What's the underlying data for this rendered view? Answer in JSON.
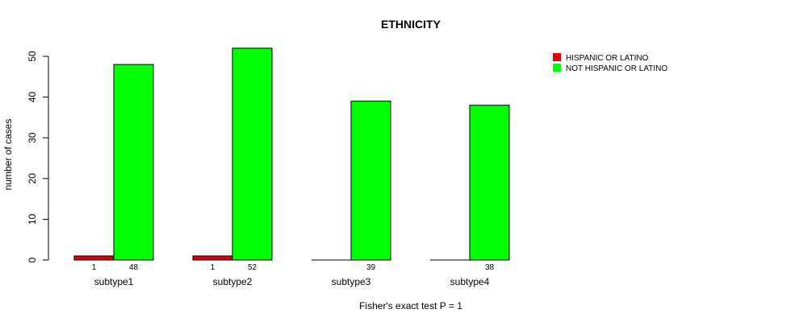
{
  "chart_data": {
    "type": "bar",
    "title": "ETHNICITY",
    "xlabel": "Fisher's exact test P = 1",
    "ylabel": "number of cases",
    "categories": [
      "subtype1",
      "subtype2",
      "subtype3",
      "subtype4"
    ],
    "series": [
      {
        "name": "HISPANIC OR LATINO",
        "values": [
          1,
          1,
          0,
          0
        ],
        "color": "#dd0000"
      },
      {
        "name": "NOT HISPANIC OR LATINO",
        "values": [
          48,
          52,
          39,
          38
        ],
        "color": "#00ff00"
      }
    ],
    "data_labels": [
      [
        "1",
        "48"
      ],
      [
        "1",
        "52"
      ],
      [
        "",
        "39"
      ],
      [
        "",
        "38"
      ]
    ],
    "yticks": [
      0,
      10,
      20,
      30,
      40,
      50
    ],
    "ylim": [
      0,
      52
    ],
    "grid": false,
    "legend_position": "top-right"
  }
}
